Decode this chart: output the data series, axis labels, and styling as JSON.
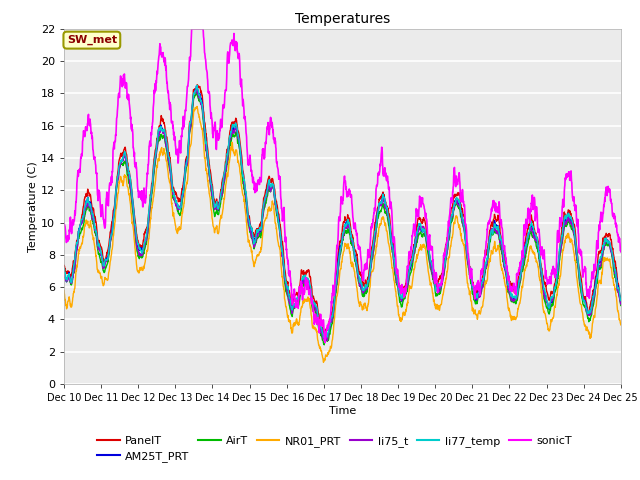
{
  "title": "Temperatures",
  "xlabel": "Time",
  "ylabel": "Temperature (C)",
  "ylim": [
    0,
    22
  ],
  "xlim": [
    0,
    15
  ],
  "x_tick_labels": [
    "Dec 10",
    "Dec 11",
    "Dec 12",
    "Dec 13",
    "Dec 14",
    "Dec 15",
    "Dec 16",
    "Dec 17",
    "Dec 18",
    "Dec 19",
    "Dec 20",
    "Dec 21",
    "Dec 22",
    "Dec 23",
    "Dec 24",
    "Dec 25"
  ],
  "series_names": [
    "PanelT",
    "AM25T_PRT",
    "AirT",
    "NR01_PRT",
    "li75_t",
    "li77_temp",
    "sonicT"
  ],
  "series_colors": [
    "#dd0000",
    "#0000dd",
    "#00bb00",
    "#ffaa00",
    "#9900cc",
    "#00cccc",
    "#ff00ff"
  ],
  "line_widths": [
    1.0,
    1.0,
    1.0,
    1.0,
    1.0,
    1.0,
    1.2
  ],
  "plot_background": "#ebebeb",
  "grid_color": "#ffffff",
  "annotation_text": "SW_met",
  "annotation_color": "#8b0000",
  "annotation_bg": "#ffffcc",
  "annotation_border": "#999900",
  "figsize": [
    6.4,
    4.8
  ],
  "dpi": 100
}
